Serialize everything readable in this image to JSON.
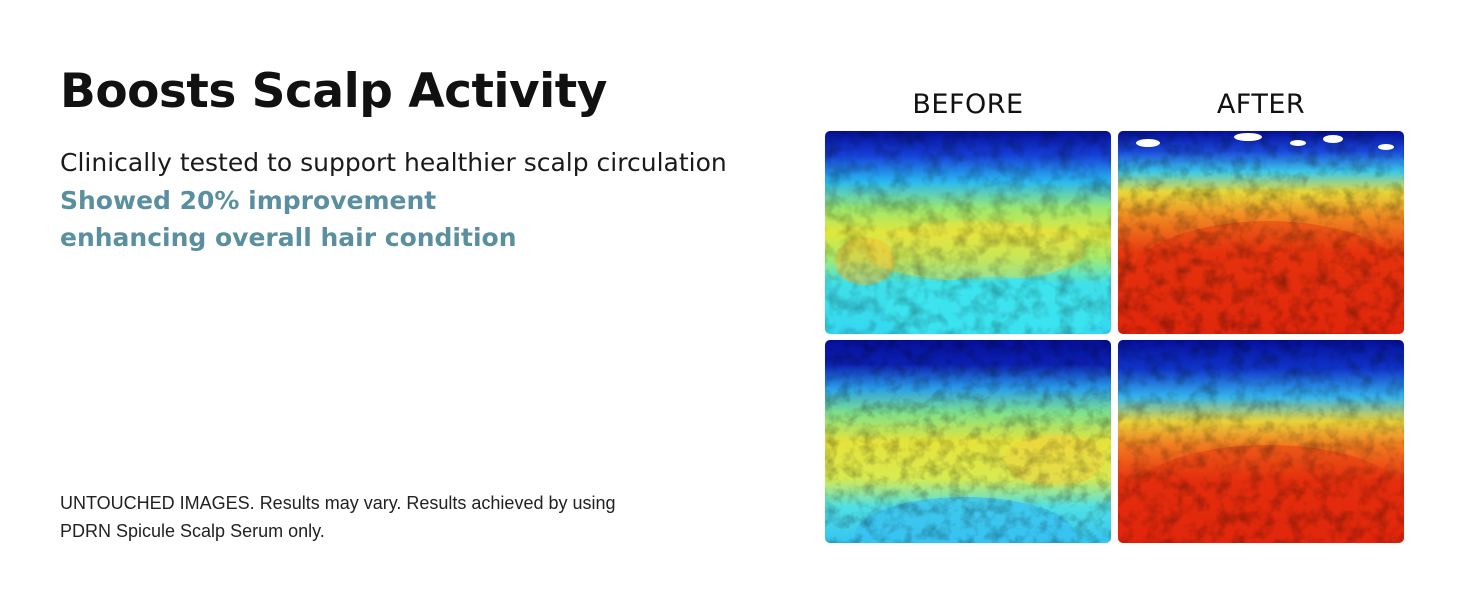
{
  "headline": "Boosts Scalp Activity",
  "subtitle": "Clinically tested to support healthier scalp circulation",
  "highlight": {
    "line1": "Showed 20% improvement",
    "line2": "enhancing overall hair condition"
  },
  "disclaimer": {
    "line1": "UNTOUCHED IMAGES. Results may vary. Results achieved by using",
    "line2": "PDRN Spicule Scalp Serum only."
  },
  "comparison": {
    "before_label": "BEFORE",
    "after_label": "AFTER"
  },
  "colors": {
    "highlight_text": "#5a8fa0",
    "thermal_cold": "#06109a",
    "thermal_cool": "#2ad4f0",
    "thermal_warm": "#e8e83a",
    "thermal_hot": "#e8220c"
  }
}
